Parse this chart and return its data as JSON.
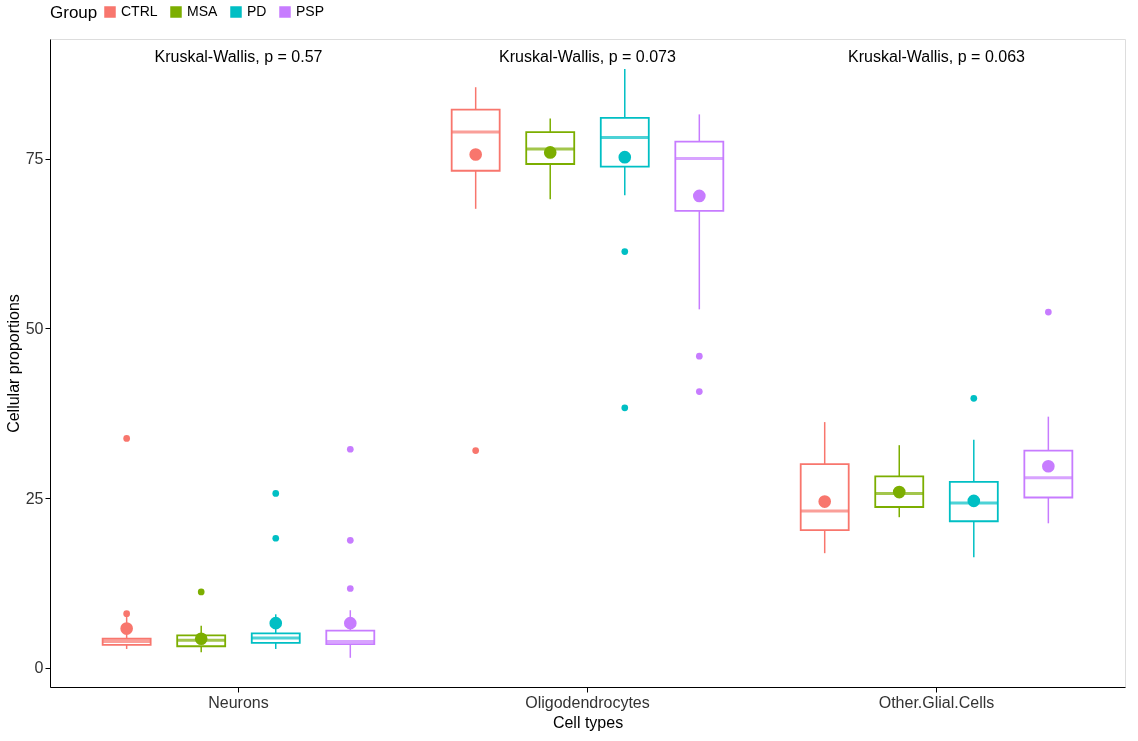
{
  "chart_data": {
    "type": "box",
    "xlabel": "Cell types",
    "ylabel": "Cellular proportions",
    "legend_title": "Group",
    "legend": "top",
    "grid": false,
    "categories": [
      "Neurons",
      "Oligodendrocytes",
      "Other.Glial.Cells"
    ],
    "ylim": [
      -2.8,
      92.6
    ],
    "yticks": [
      0,
      25,
      50,
      75
    ],
    "annotations": [
      "Kruskal-Wallis, p = 0.57",
      "Kruskal-Wallis, p = 0.073",
      "Kruskal-Wallis, p = 0.063"
    ],
    "series": [
      {
        "name": "CTRL",
        "color": "#f8766d",
        "boxes": [
          {
            "low": 2.8,
            "q1": 3.4,
            "median": 3.9,
            "q3": 4.3,
            "high": 7.5,
            "mean": 5.8,
            "outliers": [
              33.8,
              8.0
            ]
          },
          {
            "low": 67.6,
            "q1": 73.2,
            "median": 78.9,
            "q3": 82.2,
            "high": 85.5,
            "mean": 75.6,
            "outliers": [
              32.0
            ]
          },
          {
            "low": 16.9,
            "q1": 20.3,
            "median": 23.1,
            "q3": 30.0,
            "high": 36.2,
            "mean": 24.5
          }
        ]
      },
      {
        "name": "MSA",
        "color": "#7cae00",
        "boxes": [
          {
            "low": 2.3,
            "q1": 3.2,
            "median": 4.1,
            "q3": 4.8,
            "high": 6.2,
            "mean": 4.3,
            "outliers": [
              11.2
            ]
          },
          {
            "low": 69.0,
            "q1": 74.2,
            "median": 76.4,
            "q3": 78.9,
            "high": 80.9,
            "mean": 75.9
          },
          {
            "low": 22.2,
            "q1": 23.7,
            "median": 25.7,
            "q3": 28.2,
            "high": 32.8,
            "mean": 25.9
          }
        ]
      },
      {
        "name": "PD",
        "color": "#00bfc4",
        "boxes": [
          {
            "low": 2.8,
            "q1": 3.7,
            "median": 4.4,
            "q3": 5.1,
            "high": 7.9,
            "mean": 6.6,
            "outliers": [
              25.7,
              19.1
            ]
          },
          {
            "low": 69.6,
            "q1": 73.8,
            "median": 78.1,
            "q3": 81.0,
            "high": 88.2,
            "mean": 75.2,
            "outliers": [
              61.3,
              38.3
            ]
          },
          {
            "low": 16.3,
            "q1": 21.6,
            "median": 24.3,
            "q3": 27.4,
            "high": 33.6,
            "mean": 24.6,
            "outliers": [
              39.7
            ]
          }
        ]
      },
      {
        "name": "PSP",
        "color": "#c77cff",
        "boxes": [
          {
            "low": 1.5,
            "q1": 3.5,
            "median": 3.9,
            "q3": 5.5,
            "high": 8.5,
            "mean": 6.6,
            "outliers": [
              32.2,
              18.8,
              11.7
            ]
          },
          {
            "low": 52.8,
            "q1": 67.3,
            "median": 75.0,
            "q3": 77.5,
            "high": 81.5,
            "mean": 69.5,
            "outliers": [
              45.9,
              40.7
            ]
          },
          {
            "low": 21.3,
            "q1": 25.1,
            "median": 28.0,
            "q3": 32.0,
            "high": 37.0,
            "mean": 29.7,
            "outliers": [
              52.4
            ]
          }
        ]
      }
    ]
  }
}
